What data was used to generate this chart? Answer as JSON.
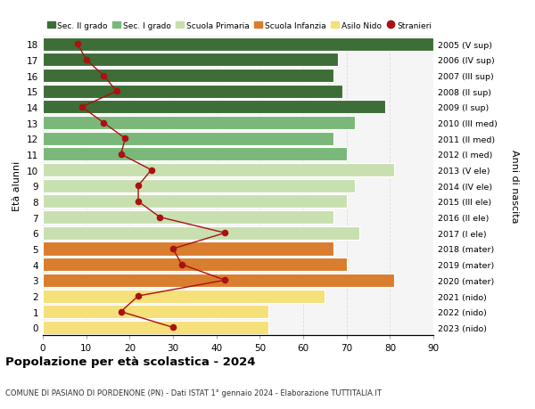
{
  "ages": [
    18,
    17,
    16,
    15,
    14,
    13,
    12,
    11,
    10,
    9,
    8,
    7,
    6,
    5,
    4,
    3,
    2,
    1,
    0
  ],
  "years": [
    "2005 (V sup)",
    "2006 (IV sup)",
    "2007 (III sup)",
    "2008 (II sup)",
    "2009 (I sup)",
    "2010 (III med)",
    "2011 (II med)",
    "2012 (I med)",
    "2013 (V ele)",
    "2014 (IV ele)",
    "2015 (III ele)",
    "2016 (II ele)",
    "2017 (I ele)",
    "2018 (mater)",
    "2019 (mater)",
    "2020 (mater)",
    "2021 (nido)",
    "2022 (nido)",
    "2023 (nido)"
  ],
  "bar_values": [
    90,
    68,
    67,
    69,
    79,
    72,
    67,
    70,
    81,
    72,
    70,
    67,
    73,
    67,
    70,
    81,
    65,
    52,
    52
  ],
  "stranieri": [
    8,
    10,
    14,
    17,
    9,
    14,
    19,
    18,
    25,
    22,
    22,
    27,
    42,
    30,
    32,
    42,
    22,
    18,
    30
  ],
  "bar_colors": [
    "#3d6e37",
    "#3d6e37",
    "#3d6e37",
    "#3d6e37",
    "#3d6e37",
    "#7ab87a",
    "#7ab87a",
    "#7ab87a",
    "#c8e0b0",
    "#c8e0b0",
    "#c8e0b0",
    "#c8e0b0",
    "#c8e0b0",
    "#d97d2e",
    "#d97d2e",
    "#d97d2e",
    "#f5e07a",
    "#f5e07a",
    "#f5e07a"
  ],
  "legend_colors": [
    "#3d6e37",
    "#7ab87a",
    "#c8e0b0",
    "#d97d2e",
    "#f5e07a",
    "#aa1111"
  ],
  "legend_labels": [
    "Sec. II grado",
    "Sec. I grado",
    "Scuola Primaria",
    "Scuola Infanzia",
    "Asilo Nido",
    "Stranieri"
  ],
  "title": "Popolazione per età scolastica - 2024",
  "subtitle": "COMUNE DI PASIANO DI PORDENONE (PN) - Dati ISTAT 1° gennaio 2024 - Elaborazione TUTTITALIA.IT",
  "ylabel_left": "Età alunni",
  "ylabel_right": "Anni di nascita",
  "xlim": [
    0,
    90
  ],
  "ylim_min": -0.5,
  "ylim_max": 18.5,
  "background_color": "#ffffff",
  "plot_bg_color": "#f5f5f5",
  "grid_color": "#dddddd",
  "stranieri_color": "#aa1111",
  "bar_height": 0.85,
  "bar_edge_color": "white",
  "bar_edge_width": 0.8
}
